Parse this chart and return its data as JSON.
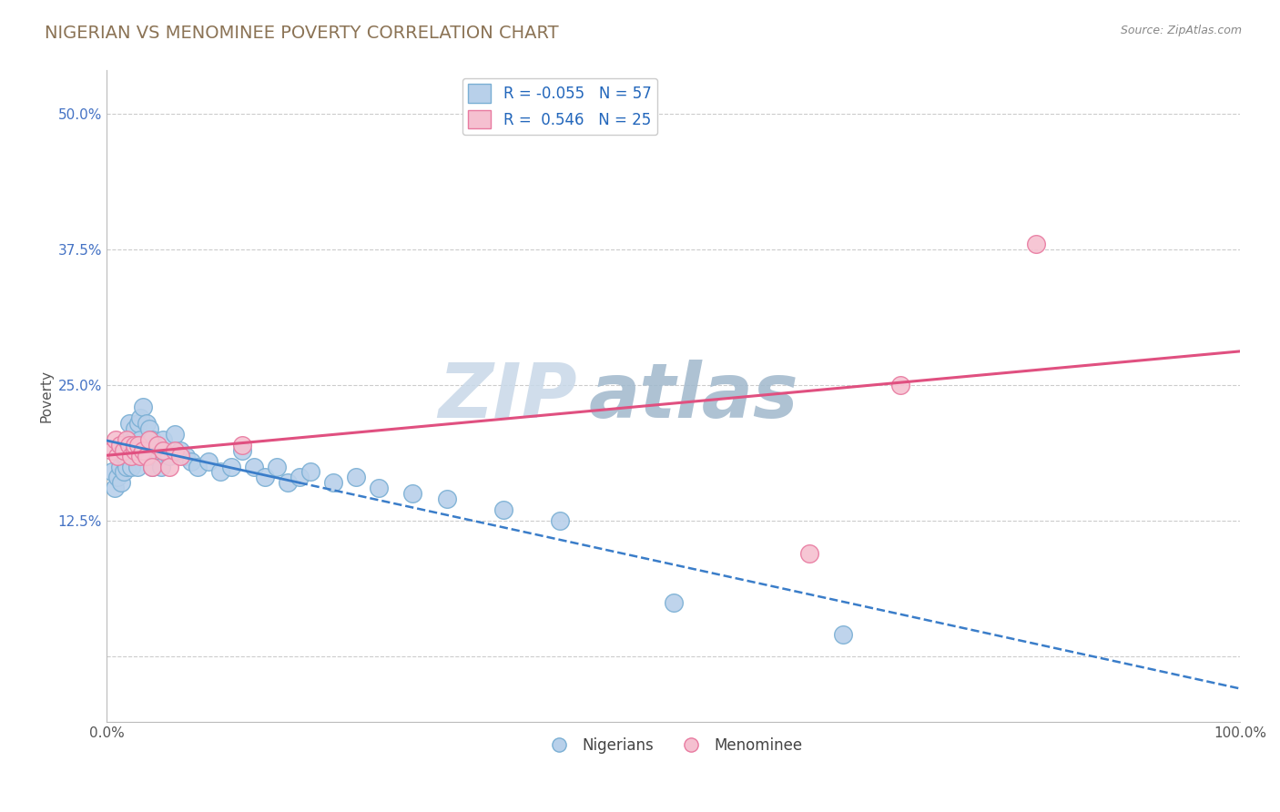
{
  "title": "NIGERIAN VS MENOMINEE POVERTY CORRELATION CHART",
  "source": "Source: ZipAtlas.com",
  "ylabel": "Poverty",
  "xlim": [
    0,
    1.0
  ],
  "ylim": [
    -0.06,
    0.54
  ],
  "ytick_positions": [
    0.0,
    0.125,
    0.25,
    0.375,
    0.5
  ],
  "ytick_labels": [
    "",
    "12.5%",
    "25.0%",
    "37.5%",
    "50.0%"
  ],
  "nigerians": {
    "label": "Nigerians",
    "R": -0.055,
    "N": 57,
    "face_color": "#b8d0ea",
    "edge_color": "#7aafd4",
    "trendline_color": "#3a7dc9",
    "trendline_style": "--",
    "x": [
      0.005,
      0.007,
      0.01,
      0.012,
      0.013,
      0.015,
      0.015,
      0.017,
      0.018,
      0.018,
      0.02,
      0.02,
      0.022,
      0.022,
      0.023,
      0.025,
      0.025,
      0.027,
      0.028,
      0.03,
      0.03,
      0.032,
      0.033,
      0.035,
      0.035,
      0.038,
      0.04,
      0.04,
      0.042,
      0.045,
      0.048,
      0.05,
      0.055,
      0.06,
      0.065,
      0.07,
      0.075,
      0.08,
      0.09,
      0.1,
      0.11,
      0.12,
      0.13,
      0.14,
      0.15,
      0.16,
      0.17,
      0.18,
      0.2,
      0.22,
      0.24,
      0.27,
      0.3,
      0.35,
      0.4,
      0.5,
      0.65
    ],
    "y": [
      0.17,
      0.155,
      0.165,
      0.175,
      0.16,
      0.185,
      0.17,
      0.185,
      0.19,
      0.175,
      0.2,
      0.215,
      0.185,
      0.175,
      0.2,
      0.19,
      0.21,
      0.175,
      0.215,
      0.22,
      0.2,
      0.23,
      0.195,
      0.215,
      0.195,
      0.21,
      0.175,
      0.2,
      0.185,
      0.19,
      0.175,
      0.2,
      0.185,
      0.205,
      0.19,
      0.185,
      0.18,
      0.175,
      0.18,
      0.17,
      0.175,
      0.19,
      0.175,
      0.165,
      0.175,
      0.16,
      0.165,
      0.17,
      0.16,
      0.165,
      0.155,
      0.15,
      0.145,
      0.135,
      0.125,
      0.05,
      0.02
    ]
  },
  "menominee": {
    "label": "Menominee",
    "R": 0.546,
    "N": 25,
    "face_color": "#f5c0d0",
    "edge_color": "#e87aa0",
    "trendline_color": "#e05080",
    "trendline_style": "-",
    "x": [
      0.005,
      0.008,
      0.01,
      0.012,
      0.015,
      0.018,
      0.02,
      0.022,
      0.025,
      0.025,
      0.028,
      0.03,
      0.032,
      0.035,
      0.038,
      0.04,
      0.045,
      0.05,
      0.055,
      0.06,
      0.065,
      0.12,
      0.62,
      0.7,
      0.82
    ],
    "y": [
      0.19,
      0.2,
      0.185,
      0.195,
      0.19,
      0.2,
      0.195,
      0.185,
      0.19,
      0.195,
      0.195,
      0.185,
      0.19,
      0.185,
      0.2,
      0.175,
      0.195,
      0.19,
      0.175,
      0.19,
      0.185,
      0.195,
      0.095,
      0.25,
      0.38
    ]
  },
  "background_color": "#ffffff",
  "grid_color": "#cccccc",
  "title_color": "#8B7355",
  "source_color": "#888888",
  "watermark_text": "ZIP",
  "watermark_text2": "atlas",
  "watermark_color1": "#c8d8e8",
  "watermark_color2": "#a0b8cc"
}
